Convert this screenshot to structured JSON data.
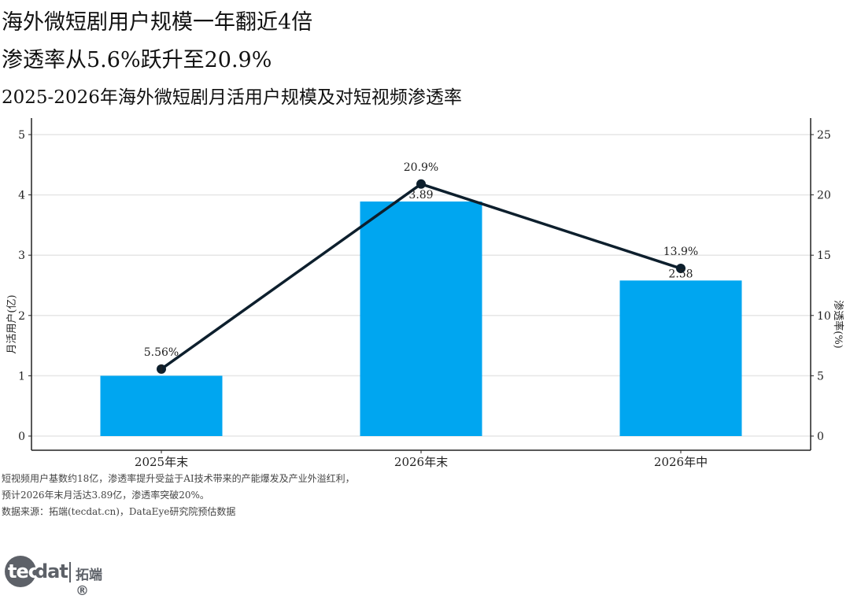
{
  "header": {
    "title_line1": "海外微短剧用户规模一年翻近4倍",
    "title_line2": "渗透率从5.6%跃升至20.9%",
    "subtitle": "2025-2026年海外微短剧月活用户规模及对短视频渗透率"
  },
  "chart_data": {
    "type": "bar",
    "categories": [
      "2025年末",
      "2026年末",
      "2026年中"
    ],
    "series": [
      {
        "name": "月活用户(亿)",
        "type": "bar",
        "axis": "left",
        "values": [
          1.0,
          3.89,
          2.58
        ],
        "labels": [
          "1",
          "3.89",
          "2.58"
        ]
      },
      {
        "name": "渗透率(%)",
        "type": "line",
        "axis": "right",
        "values": [
          5.56,
          20.9,
          13.9
        ],
        "labels": [
          "5.56%",
          "20.9%",
          "13.9%"
        ]
      }
    ],
    "ylabel": "月活用户(亿)",
    "y2label": "渗透率(%)",
    "ylim": [
      0,
      5
    ],
    "y2lim": [
      0,
      25
    ],
    "yticks": [
      "0",
      "1",
      "2",
      "3",
      "4",
      "5"
    ],
    "y2ticks": [
      "0",
      "5",
      "10",
      "15",
      "20",
      "25"
    ],
    "grid": true,
    "bar_color": "#00a6f0",
    "line_color": "#0d1f2d"
  },
  "notes": {
    "line1": "短视频用户基数约18亿，渗透率提升受益于AI技术带来的产能爆发及产业外溢红利，",
    "line2": "预计2026年末月活达3.89亿，渗透率突破20%。",
    "line3": "数据来源：拓端(tecdat.cn)，DataEye研究院预估数据"
  },
  "logo": {
    "tec": "tec",
    "dat": "dat",
    "name": "拓端®"
  }
}
